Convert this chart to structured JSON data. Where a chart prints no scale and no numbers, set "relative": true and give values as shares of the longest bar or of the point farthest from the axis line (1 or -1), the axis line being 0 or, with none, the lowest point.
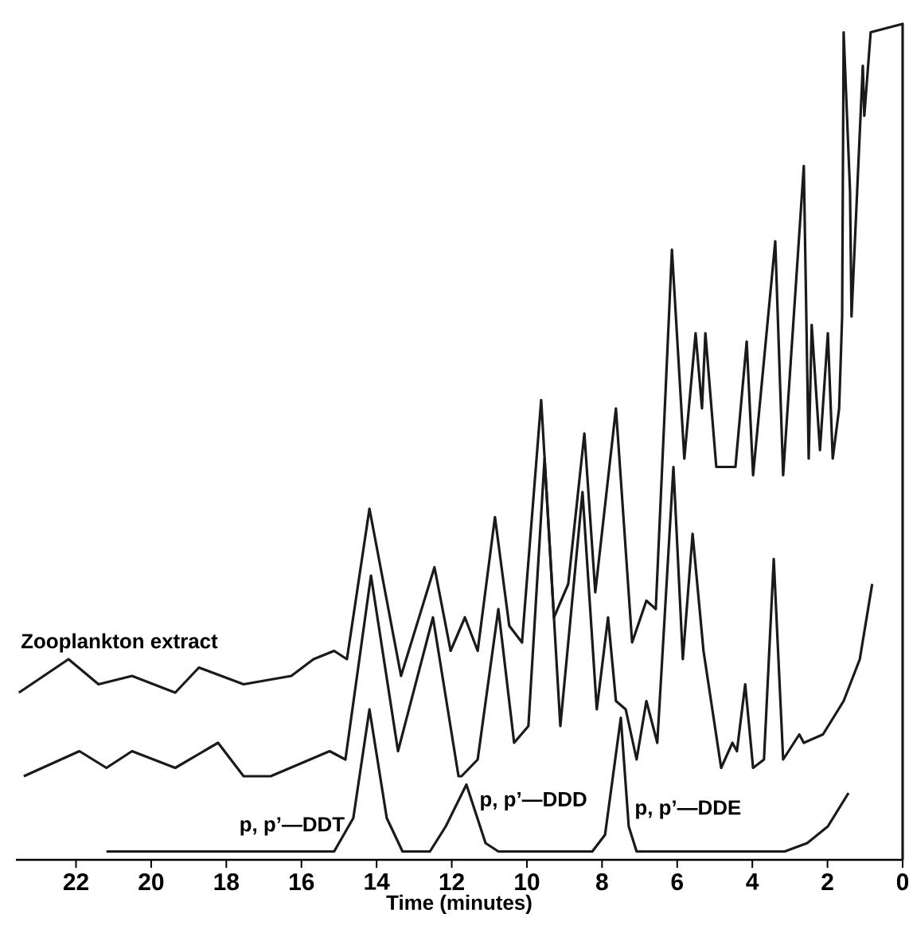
{
  "chart_data": {
    "type": "line",
    "relative": true,
    "xlabel": "Time (minutes)",
    "xlim": [
      23.6,
      0
    ],
    "xticks": [
      22,
      20,
      18,
      16,
      14,
      12,
      10,
      8,
      6,
      4,
      2,
      0
    ],
    "marker": "none",
    "line_style": "solid",
    "grid": false,
    "legend": false,
    "series": [
      {
        "name": "Zooplankton extract",
        "color": "#1a1a1a",
        "x": [
          23.52,
          22.2,
          21.4,
          20.51,
          19.36,
          18.73,
          17.54,
          16.27,
          15.68,
          15.13,
          14.79,
          14.19,
          13.35,
          12.46,
          12.03,
          11.65,
          11.31,
          10.85,
          10.47,
          10.13,
          9.62,
          9.28,
          8.9,
          8.47,
          8.18,
          7.63,
          7.2,
          6.82,
          6.57,
          6.14,
          5.81,
          5.51,
          5.34,
          5.25,
          4.96,
          4.45,
          4.15,
          3.98,
          3.39,
          3.18,
          2.63,
          2.5,
          2.42,
          2.2,
          1.99,
          1.86,
          1.69,
          1.61,
          1.57,
          1.4,
          1.36,
          1.06,
          1.02,
          0.85,
          0,
          0
        ],
        "values": [
          0.2,
          0.24,
          0.21,
          0.22,
          0.2,
          0.23,
          0.21,
          0.22,
          0.24,
          0.25,
          0.24,
          0.42,
          0.22,
          0.35,
          0.25,
          0.29,
          0.25,
          0.41,
          0.28,
          0.26,
          0.55,
          0.29,
          0.33,
          0.51,
          0.32,
          0.54,
          0.26,
          0.31,
          0.3,
          0.73,
          0.48,
          0.63,
          0.54,
          0.63,
          0.47,
          0.47,
          0.62,
          0.46,
          0.74,
          0.46,
          0.83,
          0.48,
          0.64,
          0.49,
          0.63,
          0.48,
          0.54,
          0.65,
          0.99,
          0.8,
          0.65,
          0.95,
          0.89,
          0.99,
          1.0,
          0
        ]
      },
      {
        "color": "#1a1a1a",
        "x": [
          23.39,
          21.91,
          21.19,
          20.51,
          19.36,
          18.22,
          17.54,
          16.82,
          15.25,
          14.83,
          14.15,
          13.43,
          12.5,
          11.82,
          11.74,
          11.31,
          10.76,
          10.34,
          9.96,
          9.53,
          9.11,
          8.52,
          8.14,
          7.84,
          7.63,
          7.37,
          7.08,
          6.82,
          6.53,
          6.1,
          5.85,
          5.59,
          5.3,
          4.83,
          4.53,
          4.41,
          4.19,
          3.98,
          3.69,
          3.43,
          3.18,
          2.75,
          2.63,
          2.12,
          1.57,
          1.14,
          0.81
        ],
        "values": [
          0.1,
          0.13,
          0.11,
          0.13,
          0.11,
          0.14,
          0.1,
          0.1,
          0.13,
          0.12,
          0.34,
          0.13,
          0.29,
          0.1,
          0.1,
          0.12,
          0.3,
          0.14,
          0.16,
          0.48,
          0.16,
          0.44,
          0.18,
          0.29,
          0.19,
          0.18,
          0.12,
          0.19,
          0.14,
          0.47,
          0.24,
          0.39,
          0.25,
          0.11,
          0.14,
          0.13,
          0.21,
          0.11,
          0.12,
          0.36,
          0.12,
          0.15,
          0.14,
          0.15,
          0.19,
          0.24,
          0.33
        ]
      },
      {
        "color": "#1a1a1a",
        "x": [
          21.19,
          15.13,
          14.62,
          14.19,
          13.73,
          13.31,
          12.58,
          12.16,
          11.61,
          11.1,
          10.76,
          8.26,
          7.92,
          7.5,
          7.29,
          7.08,
          3.14,
          2.54,
          1.99,
          1.44
        ],
        "values": [
          0.01,
          0.01,
          0.05,
          0.18,
          0.05,
          0.01,
          0.01,
          0.04,
          0.09,
          0.02,
          0.01,
          0.01,
          0.03,
          0.17,
          0.04,
          0.01,
          0.01,
          0.02,
          0.04,
          0.08
        ]
      }
    ],
    "annotations": [
      {
        "text": "p, p’—DDT",
        "x": 14.65,
        "y": 0.04
      },
      {
        "text": "p, p’—DDD",
        "x": 11.46,
        "y": 0.07
      },
      {
        "text": "p, p’—DDE",
        "x": 7.33,
        "y": 0.06
      }
    ]
  }
}
